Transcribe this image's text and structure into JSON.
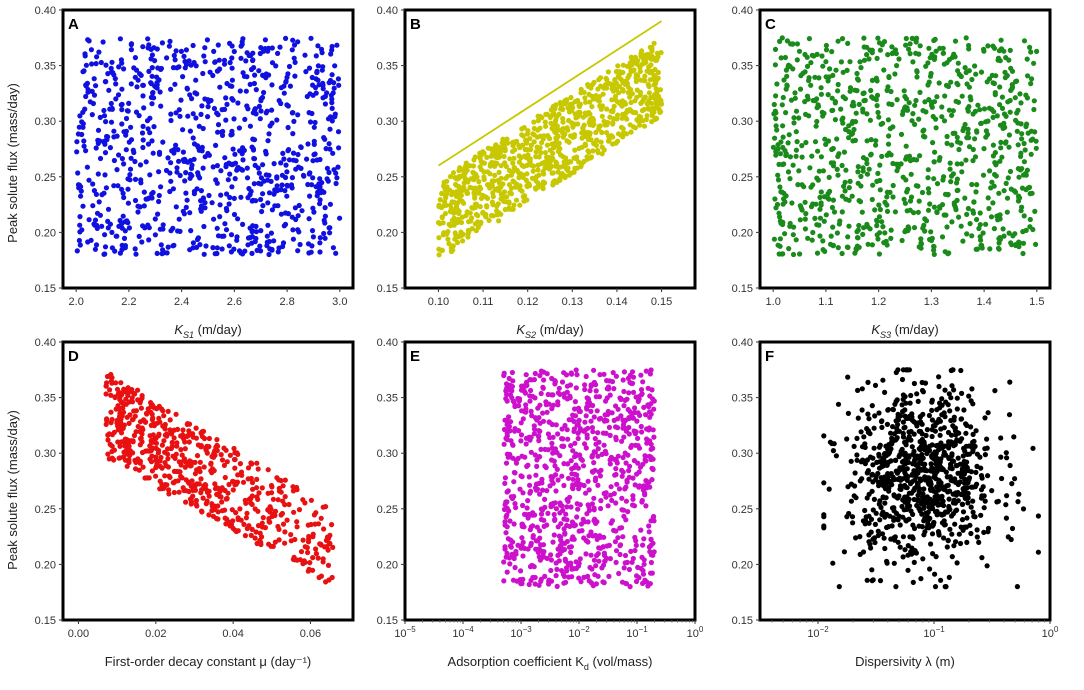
{
  "figure": {
    "ylabel": "Peak solute flux (mass/day)"
  },
  "chart_data": [
    {
      "panel": "A",
      "type": "scatter",
      "color": "#1010e0",
      "xscale": "linear",
      "xlim": [
        1.95,
        3.05
      ],
      "ylim": [
        0.15,
        0.4
      ],
      "xticks": [
        2.0,
        2.2,
        2.4,
        2.6,
        2.8,
        3.0
      ],
      "xtick_labels": [
        "2.0",
        "2.2",
        "2.4",
        "2.6",
        "2.8",
        "3.0"
      ],
      "yticks": [
        0.15,
        0.2,
        0.25,
        0.3,
        0.35,
        0.4
      ],
      "ytick_labels": [
        "0.15",
        "0.20",
        "0.25",
        "0.30",
        "0.35",
        "0.40"
      ],
      "xlabel_main": "K",
      "xlabel_sub": "S1",
      "xlabel_rest": " (m/day)",
      "pattern": {
        "kind": "uniform",
        "x": [
          2.0,
          3.0
        ],
        "y": [
          0.18,
          0.375
        ]
      },
      "n_points": 900
    },
    {
      "panel": "B",
      "type": "scatter",
      "color": "#c8c800",
      "xscale": "linear",
      "xlim": [
        0.0925,
        0.1575
      ],
      "ylim": [
        0.15,
        0.4
      ],
      "xticks": [
        0.1,
        0.11,
        0.12,
        0.13,
        0.14,
        0.15
      ],
      "xtick_labels": [
        "0.10",
        "0.11",
        "0.12",
        "0.13",
        "0.14",
        "0.15"
      ],
      "yticks": [
        0.15,
        0.2,
        0.25,
        0.3,
        0.35,
        0.4
      ],
      "ytick_labels": [
        "0.15",
        "0.20",
        "0.25",
        "0.30",
        "0.35",
        "0.40"
      ],
      "xlabel_main": "K",
      "xlabel_sub": "S2",
      "xlabel_rest": " (m/day)",
      "pattern": {
        "kind": "band",
        "x": [
          0.1,
          0.15
        ],
        "top": [
          0.248,
          0.375
        ],
        "bottom": [
          0.175,
          0.305
        ]
      },
      "line": {
        "x": [
          0.1,
          0.15
        ],
        "y": [
          0.26,
          0.39
        ]
      },
      "n_points": 900
    },
    {
      "panel": "C",
      "type": "scatter",
      "color": "#1a8a1a",
      "xscale": "linear",
      "xlim": [
        0.975,
        1.525
      ],
      "ylim": [
        0.15,
        0.4
      ],
      "xticks": [
        1.0,
        1.1,
        1.2,
        1.3,
        1.4,
        1.5
      ],
      "xtick_labels": [
        "1.0",
        "1.1",
        "1.2",
        "1.3",
        "1.4",
        "1.5"
      ],
      "yticks": [
        0.15,
        0.2,
        0.25,
        0.3,
        0.35,
        0.4
      ],
      "ytick_labels": [
        "0.15",
        "0.20",
        "0.25",
        "0.30",
        "0.35",
        "0.40"
      ],
      "xlabel_main": "K",
      "xlabel_sub": "S3",
      "xlabel_rest": " (m/day)",
      "pattern": {
        "kind": "uniform",
        "x": [
          1.0,
          1.5
        ],
        "y": [
          0.18,
          0.375
        ]
      },
      "n_points": 900
    },
    {
      "panel": "D",
      "type": "scatter",
      "color": "#e81010",
      "xscale": "linear",
      "xlim": [
        -0.004,
        0.071
      ],
      "ylim": [
        0.15,
        0.4
      ],
      "xticks": [
        0.0,
        0.02,
        0.04,
        0.06
      ],
      "xtick_labels": [
        "0.00",
        "0.02",
        "0.04",
        "0.06"
      ],
      "yticks": [
        0.15,
        0.2,
        0.25,
        0.3,
        0.35,
        0.4
      ],
      "ytick_labels": [
        "0.15",
        "0.20",
        "0.25",
        "0.30",
        "0.35",
        "0.40"
      ],
      "xlabel_text": "First-order decay constant μ (day⁻¹)",
      "pattern": {
        "kind": "decay",
        "x": [
          0.007,
          0.066
        ],
        "top": [
          0.375,
          0.25
        ],
        "bottom": [
          0.295,
          0.18
        ]
      },
      "n_points": 900
    },
    {
      "panel": "E",
      "type": "scatter",
      "color": "#cc10cc",
      "xscale": "log",
      "xlim": [
        -5,
        0
      ],
      "ylim": [
        0.15,
        0.4
      ],
      "xticks": [
        -5,
        -4,
        -3,
        -2,
        -1,
        0
      ],
      "xtick_base": "10",
      "xtick_exps": [
        "−5",
        "−4",
        "−3",
        "−2",
        "−1",
        "0"
      ],
      "yticks": [
        0.15,
        0.2,
        0.25,
        0.3,
        0.35,
        0.4
      ],
      "ytick_labels": [
        "0.15",
        "0.20",
        "0.25",
        "0.30",
        "0.35",
        "0.40"
      ],
      "xlabel_main": "Adsorption coefficient K",
      "xlabel_sub": "d",
      "xlabel_rest": " (vol/mass)",
      "pattern": {
        "kind": "uniform",
        "x": [
          -3.3,
          -0.7
        ],
        "y": [
          0.18,
          0.375
        ]
      },
      "n_points": 900
    },
    {
      "panel": "F",
      "type": "scatter",
      "color": "#000000",
      "xscale": "log",
      "xlim": [
        -2.5,
        0
      ],
      "ylim": [
        0.15,
        0.4
      ],
      "xticks": [
        -2,
        -1,
        0
      ],
      "xtick_base": "10",
      "xtick_exps": [
        "−2",
        "−1",
        "0"
      ],
      "yticks": [
        0.15,
        0.2,
        0.25,
        0.3,
        0.35,
        0.4
      ],
      "ytick_labels": [
        "0.15",
        "0.20",
        "0.25",
        "0.30",
        "0.35",
        "0.40"
      ],
      "xlabel_text": "Dispersivity λ (m)",
      "pattern": {
        "kind": "cluster",
        "center": [
          -1.1,
          0.28
        ],
        "spread": [
          0.32,
          0.04
        ],
        "x": [
          -1.95,
          -0.1
        ],
        "y": [
          0.18,
          0.375
        ]
      },
      "n_points": 900
    }
  ]
}
